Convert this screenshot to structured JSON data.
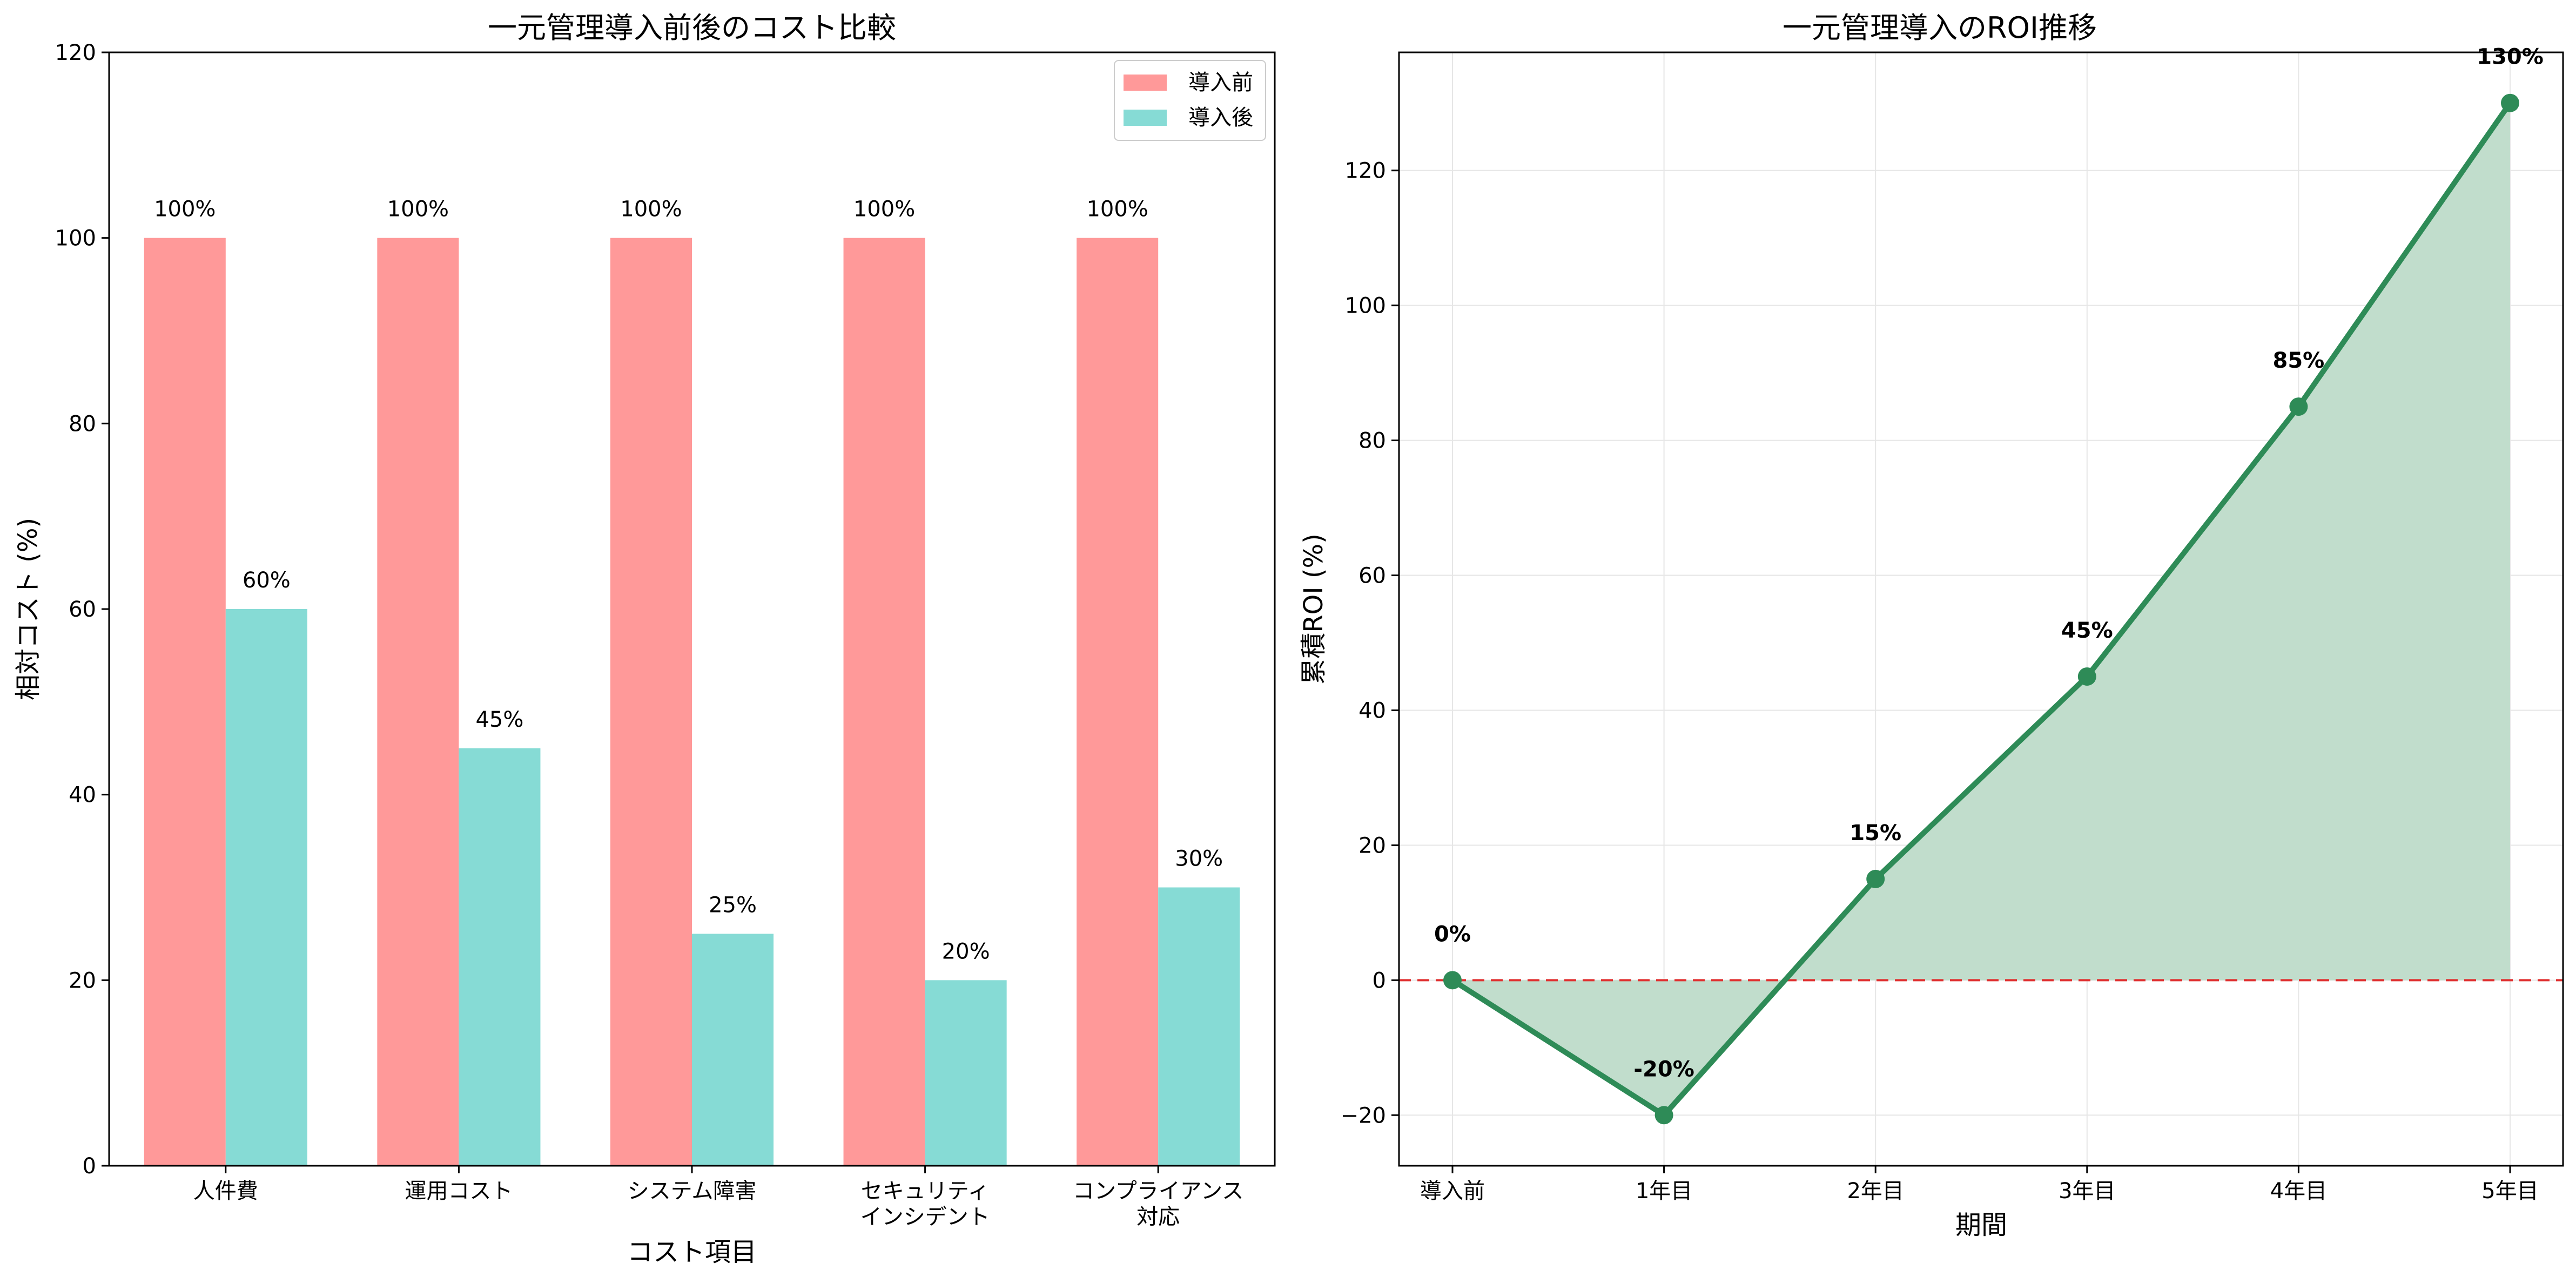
{
  "chart_data": [
    {
      "type": "bar",
      "title": "一元管理導入前後のコスト比較",
      "xlabel": "コスト項目",
      "ylabel": "相対コスト (%)",
      "categories": [
        "人件費",
        "運用コスト",
        "システム障害",
        "セキュリティ\nインシデント",
        "コンプライアンス\n対応"
      ],
      "series": [
        {
          "name": "導入前",
          "values": [
            100,
            100,
            100,
            100,
            100
          ],
          "color": "#ff9999",
          "labels": [
            "100%",
            "100%",
            "100%",
            "100%",
            "100%"
          ]
        },
        {
          "name": "導入後",
          "values": [
            60,
            45,
            25,
            20,
            30
          ],
          "color": "#86dbd5",
          "labels": [
            "60%",
            "45%",
            "25%",
            "20%",
            "30%"
          ]
        }
      ],
      "ylim": [
        0,
        120
      ],
      "yticks": [
        0,
        20,
        40,
        60,
        80,
        100,
        120
      ],
      "legend": "top-right",
      "grid": false
    },
    {
      "type": "line",
      "title": "一元管理導入のROI推移",
      "xlabel": "期間",
      "ylabel": "累積ROI (%)",
      "categories": [
        "導入前",
        "1年目",
        "2年目",
        "3年目",
        "4年目",
        "5年目"
      ],
      "series": [
        {
          "values": [
            0,
            -20,
            15,
            45,
            85,
            130
          ],
          "color": "#2e8b57",
          "labels": [
            "0%",
            "-20%",
            "15%",
            "45%",
            "85%",
            "130%"
          ]
        }
      ],
      "ylim": [
        -27.5,
        137.5
      ],
      "yticks": [
        -20,
        0,
        20,
        40,
        60,
        80,
        100,
        120
      ],
      "ytick_labels": [
        "−20",
        "0",
        "20",
        "40",
        "60",
        "80",
        "100",
        "120"
      ],
      "reference_line": {
        "y": 0,
        "color": "#e03030",
        "style": "dashed"
      },
      "fill_color": "#c1ddcc",
      "grid": true
    }
  ]
}
